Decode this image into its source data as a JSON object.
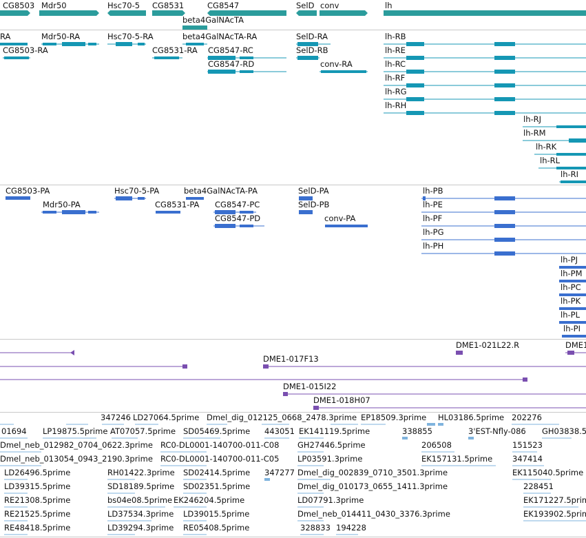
{
  "colors": {
    "gene": "#2b9c9c",
    "gene_dark": "#1f8b8b",
    "rna": "#1597b4",
    "protein": "#3a6fcf",
    "bac": "#7a4fb0",
    "est": "#7fb3dd",
    "divider": "#c8c8c8"
  },
  "track_gene": {
    "labels": [
      "CG8503",
      "Mdr50",
      "Hsc70-5",
      "CG8531",
      "CG8547",
      "SelD",
      "conv",
      "lh",
      "beta4GalNAcTA"
    ]
  },
  "track_rna": {
    "labels": [
      "RA",
      "Mdr50-RA",
      "Hsc70-5-RA",
      "beta4GalNAcTA-RA",
      "SelD-RA",
      "lh-RB",
      "CG8503-RA",
      "CG8531-RA",
      "CG8547-RC",
      "SelD-RB",
      "lh-RE",
      "CG8547-RD",
      "conv-RA",
      "lh-RC",
      "lh-RF",
      "lh-RG",
      "lh-RH",
      "lh-RJ",
      "lh-RM",
      "lh-RK",
      "lh-RL",
      "lh-RI"
    ]
  },
  "track_protein": {
    "labels": [
      "CG8503-PA",
      "Hsc70-5-PA",
      "beta4GalNAcTA-PA",
      "SelD-PA",
      "lh-PB",
      "Mdr50-PA",
      "CG8531-PA",
      "CG8547-PC",
      "SelD-PB",
      "lh-PE",
      "CG8547-PD",
      "conv-PA",
      "lh-PF",
      "lh-PG",
      "lh-PH",
      "lh-PJ",
      "lh-PM",
      "lh-PC",
      "lh-PK",
      "lh-PL",
      "lh-PI"
    ]
  },
  "track_bac": {
    "labels": [
      "DME1-021L22.R",
      "DME1",
      "DME1-017F13",
      "DME1-015I22",
      "DME1-018H07"
    ]
  },
  "track_est": {
    "labels": [
      "347246",
      "LD27064.5prime",
      "Dmel_dig_012125_0668_2478.3prime",
      "EP18509.3prime",
      "HL03186.5prime",
      "202276",
      "01694",
      "LP19875.5prime",
      "AT07057.5prime",
      "SD05469.5prime",
      "443051",
      "EK141119.5prime",
      "338855",
      "3'EST-Nfly-086",
      "GH03838.5",
      "Dmel_neb_012982_0704_0622.3prime",
      "RC0-DL0001-140700-011-C08",
      "GH27446.5prime",
      "206508",
      "151523",
      "Dmel_neb_013054_0943_2190.3prime",
      "RC0-DL0001-140700-011-C05",
      "LP03591.3prime",
      "EK157131.5prime",
      "347414",
      "LD26496.5prime",
      "RH01422.3prime",
      "SD02414.5prime",
      "347277",
      "Dmel_dig_002839_0710_3501.3prime",
      "EK115040.5prime",
      "LD39315.5prime",
      "SD18189.5prime",
      "SD02351.5prime",
      "Dmel_dig_010173_0655_1411.3prime",
      "228451",
      "RE21308.5prime",
      "bs04e08.5prime",
      "EK246204.5prime",
      "LD07791.3prime",
      "EK171227.5prime",
      "RE21525.5prime",
      "LD37534.3prime",
      "LD39015.5prime",
      "Dmel_neb_014411_0430_3376.3prime",
      "EK193902.5prime",
      "RE48418.5prime",
      "LD39294.3prime",
      "RE05408.5prime",
      "328833",
      "194228"
    ]
  }
}
